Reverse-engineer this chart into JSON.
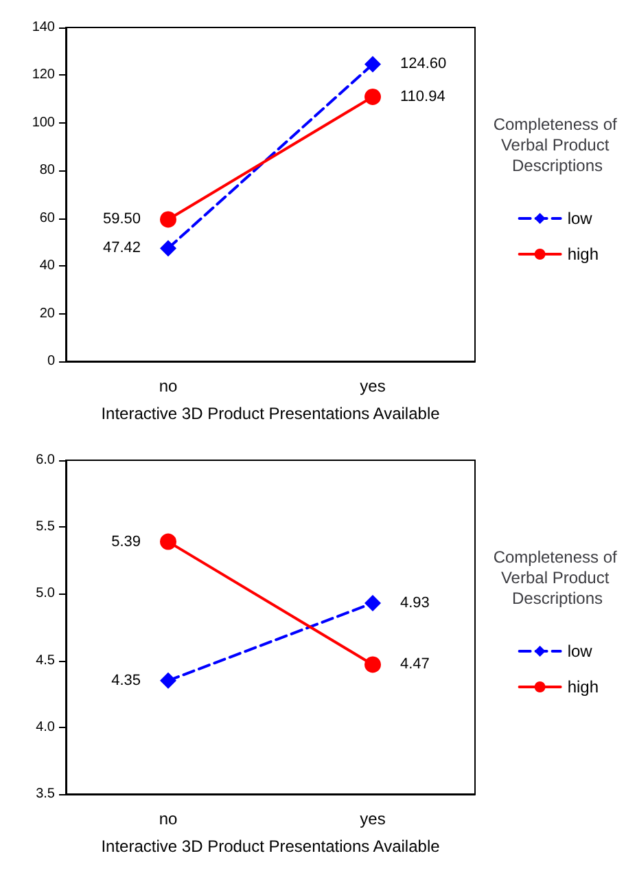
{
  "chart_data": [
    {
      "type": "line",
      "categories": [
        "no",
        "yes"
      ],
      "xlabel": "Interactive 3D Product Presentations Available",
      "ylim": [
        0,
        140
      ],
      "yticks": [
        0,
        20,
        40,
        60,
        80,
        100,
        120,
        140
      ],
      "grid": false,
      "legend": "right",
      "legend_title": "Completeness of Verbal Product Descriptions",
      "series": [
        {
          "name": "low",
          "color": "#0000ff",
          "values": [
            47.42,
            124.6
          ],
          "value_labels": [
            "47.42",
            "124.60"
          ],
          "marker": "diamond",
          "line_style": "dashed"
        },
        {
          "name": "high",
          "color": "#ff0000",
          "values": [
            59.5,
            110.94
          ],
          "value_labels": [
            "59.50",
            "110.94"
          ],
          "marker": "circle",
          "line_style": "solid"
        }
      ]
    },
    {
      "type": "line",
      "categories": [
        "no",
        "yes"
      ],
      "xlabel": "Interactive 3D Product Presentations Available",
      "ylim": [
        3.5,
        6
      ],
      "yticks": [
        "3.5",
        "4.0",
        "4.5",
        "5.0",
        "5.5",
        "6.0"
      ],
      "grid": false,
      "legend": "right",
      "legend_title": "Completeness of Verbal Product Descriptions",
      "series": [
        {
          "name": "low",
          "color": "#0000ff",
          "values": [
            4.35,
            4.93
          ],
          "value_labels": [
            "4.35",
            "4.93"
          ],
          "marker": "diamond",
          "line_style": "dashed"
        },
        {
          "name": "high",
          "color": "#ff0000",
          "values": [
            5.39,
            4.47
          ],
          "value_labels": [
            "5.39",
            "4.47"
          ],
          "marker": "circle",
          "line_style": "solid"
        }
      ]
    }
  ]
}
